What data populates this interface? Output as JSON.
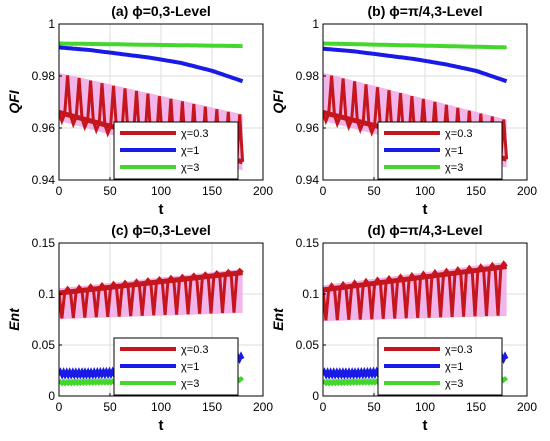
{
  "chart_data": [
    {
      "type": "line",
      "title": "(a) ϕ=0,3-Level",
      "xlabel": "t",
      "ylabel": "QFI",
      "xlim": [
        0,
        200
      ],
      "ylim": [
        0.94,
        1.0
      ],
      "xticks": [
        "0",
        "50",
        "100",
        "150",
        "200"
      ],
      "yticks": [
        "0.94",
        "0.96",
        "0.98",
        "1"
      ],
      "grid": true,
      "legend_placement": "bottom-right",
      "series": [
        {
          "name": "χ=0.3",
          "color": "#c4161c",
          "band": "#f0a8e6",
          "x": [
            0,
            180
          ],
          "lower": [
            0.963,
            0.944
          ],
          "upper": [
            0.981,
            0.965
          ],
          "mean": [
            0.966,
            0.947
          ],
          "oscillations": 32
        },
        {
          "name": "χ=1",
          "color": "#1a1ae6",
          "x": [
            0,
            30,
            60,
            90,
            120,
            150,
            180
          ],
          "values": [
            0.991,
            0.99,
            0.9885,
            0.987,
            0.985,
            0.982,
            0.978
          ]
        },
        {
          "name": "χ=3",
          "color": "#44d62c",
          "x": [
            0,
            180
          ],
          "values": [
            0.9925,
            0.9915
          ]
        }
      ]
    },
    {
      "type": "line",
      "title": "(b) ϕ=π/4,3-Level",
      "xlabel": "t",
      "ylabel": "QFI",
      "xlim": [
        0,
        200
      ],
      "ylim": [
        0.94,
        1.0
      ],
      "xticks": [
        "0",
        "50",
        "100",
        "150",
        "200"
      ],
      "yticks": [
        "0.94",
        "0.96",
        "0.98",
        "1"
      ],
      "grid": true,
      "legend_placement": "bottom-right",
      "series": [
        {
          "name": "χ=0.3",
          "color": "#c4161c",
          "band": "#f0a8e6",
          "x": [
            0,
            180
          ],
          "lower": [
            0.963,
            0.945
          ],
          "upper": [
            0.981,
            0.963
          ],
          "mean": [
            0.966,
            0.948
          ],
          "oscillations": 32
        },
        {
          "name": "χ=1",
          "color": "#1a1ae6",
          "x": [
            0,
            30,
            60,
            90,
            120,
            150,
            180
          ],
          "values": [
            0.9905,
            0.9895,
            0.988,
            0.9865,
            0.9845,
            0.982,
            0.978
          ]
        },
        {
          "name": "χ=3",
          "color": "#44d62c",
          "x": [
            0,
            180
          ],
          "values": [
            0.9925,
            0.991
          ]
        }
      ]
    },
    {
      "type": "line",
      "title": "(c) ϕ=0,3-Level",
      "xlabel": "t",
      "ylabel": "Ent",
      "xlim": [
        0,
        200
      ],
      "ylim": [
        0,
        0.15
      ],
      "xticks": [
        "0",
        "50",
        "100",
        "150",
        "200"
      ],
      "yticks": [
        "0",
        "0.05",
        "0.1",
        "0.15"
      ],
      "grid": true,
      "legend_placement": "bottom-right",
      "series": [
        {
          "name": "χ=0.3",
          "color": "#c4161c",
          "band": "#f0a8e6",
          "x": [
            0,
            180
          ],
          "lower": [
            0.076,
            0.082
          ],
          "upper": [
            0.105,
            0.124
          ],
          "mean": [
            0.101,
            0.121
          ],
          "oscillations": 32
        },
        {
          "name": "χ=1",
          "color": "#1a1ae6",
          "x": [
            0,
            30,
            60,
            90,
            120,
            150,
            180
          ],
          "values": [
            0.022,
            0.022,
            0.023,
            0.025,
            0.028,
            0.032,
            0.038
          ],
          "wiggle": 0.002
        },
        {
          "name": "χ=3",
          "color": "#44d62c",
          "x": [
            0,
            180
          ],
          "values": [
            0.013,
            0.016
          ],
          "wiggle": 0.001
        }
      ]
    },
    {
      "type": "line",
      "title": "(d) ϕ=π/4,3-Level",
      "xlabel": "t",
      "ylabel": "Ent",
      "xlim": [
        0,
        200
      ],
      "ylim": [
        0,
        0.15
      ],
      "xticks": [
        "0",
        "50",
        "100",
        "150",
        "200"
      ],
      "yticks": [
        "0",
        "0.05",
        "0.1",
        "0.15"
      ],
      "grid": true,
      "legend_placement": "bottom-right",
      "series": [
        {
          "name": "χ=0.3",
          "color": "#c4161c",
          "band": "#f0a8e6",
          "x": [
            0,
            180
          ],
          "lower": [
            0.074,
            0.079
          ],
          "upper": [
            0.108,
            0.131
          ],
          "mean": [
            0.104,
            0.127
          ],
          "oscillations": 32
        },
        {
          "name": "χ=1",
          "color": "#1a1ae6",
          "x": [
            0,
            30,
            60,
            90,
            120,
            150,
            180
          ],
          "values": [
            0.022,
            0.022,
            0.023,
            0.025,
            0.028,
            0.032,
            0.038
          ],
          "wiggle": 0.002
        },
        {
          "name": "χ=3",
          "color": "#44d62c",
          "x": [
            0,
            180
          ],
          "values": [
            0.013,
            0.016
          ],
          "wiggle": 0.001
        }
      ]
    }
  ]
}
